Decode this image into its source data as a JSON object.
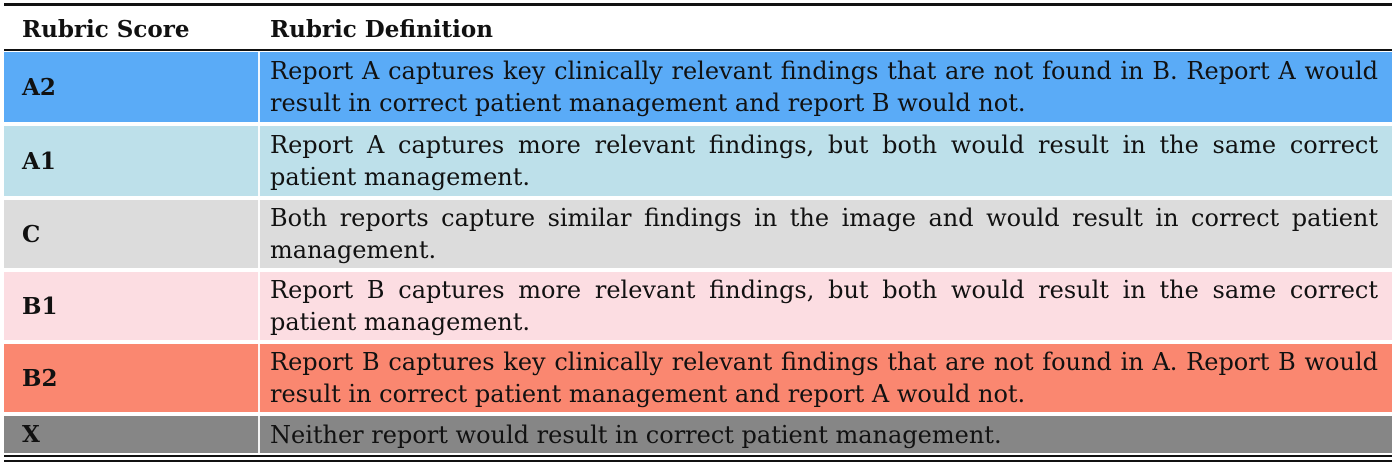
{
  "table": {
    "headers": {
      "score": "Rubric Score",
      "definition": "Rubric Definition"
    },
    "rows": [
      {
        "score": "A2",
        "definition": "Report A captures key clinically relevant findings that are not found in B. Report A would result in correct patient management and report B would not.",
        "color": "#5aabf7"
      },
      {
        "score": "A1",
        "definition": "Report A captures more relevant findings, but both would result in the same correct patient management.",
        "color": "#bde0ea"
      },
      {
        "score": "C",
        "definition": "Both reports capture similar findings in the image and would result in correct patient management.",
        "color": "#dcdcdc"
      },
      {
        "score": "B1",
        "definition": "Report B captures more relevant findings, but both would result in the same correct patient management.",
        "color": "#fcdde2"
      },
      {
        "score": "B2",
        "definition": "Report B captures key clinically relevant findings that are not found in A. Report B would result in correct patient management and report A would not.",
        "color": "#fa8770"
      },
      {
        "score": "X",
        "definition": "Neither report would result in correct patient management.",
        "color": "#868686"
      }
    ]
  }
}
